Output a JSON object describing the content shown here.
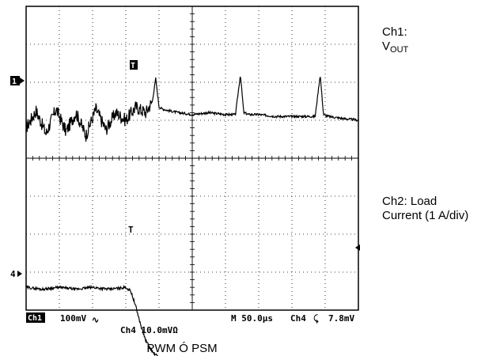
{
  "chart_data": {
    "type": "line",
    "grid": true,
    "x_divisions": 10,
    "y_divisions": 8,
    "series": [
      {
        "name": "Ch1: VOUT",
        "units_per_div": "100mV",
        "x": [
          0,
          0.3,
          0.6,
          0.9,
          1.2,
          1.5,
          1.8,
          2.1,
          2.4,
          2.7,
          3.0,
          3.3,
          3.6,
          3.8,
          3.9,
          4.0,
          4.1,
          4.3,
          4.6,
          5.0,
          5.5,
          6.0,
          6.3,
          6.45,
          6.55,
          6.7,
          7.0,
          7.5,
          8.0,
          8.5,
          8.7,
          8.85,
          8.95,
          9.1,
          9.5,
          10
        ],
        "y": [
          0.8,
          1.25,
          0.65,
          1.3,
          0.7,
          1.2,
          0.6,
          1.3,
          0.75,
          1.2,
          1.0,
          1.35,
          1.2,
          1.5,
          2.1,
          1.35,
          1.3,
          1.25,
          1.2,
          1.15,
          1.2,
          1.15,
          1.15,
          2.2,
          1.2,
          1.15,
          1.15,
          1.1,
          1.1,
          1.1,
          1.1,
          2.2,
          1.15,
          1.1,
          1.05,
          1.0
        ]
      },
      {
        "name": "Ch2: Load Current (1 A/div)",
        "units_per_div": "10.0mV",
        "x": [
          0,
          0.5,
          1.0,
          1.5,
          2.0,
          2.5,
          3.0,
          3.15,
          3.3,
          3.45,
          3.6,
          3.8,
          4.0,
          4.3,
          4.6,
          5.0,
          5.5,
          6.0,
          6.5,
          7.0,
          7.5,
          8.0,
          8.5,
          9.0,
          9.5,
          10
        ],
        "y": [
          -3.4,
          -3.45,
          -3.4,
          -3.45,
          -3.4,
          -3.45,
          -3.4,
          -3.5,
          -3.9,
          -4.4,
          -4.8,
          -5.1,
          -5.25,
          -5.35,
          -5.4,
          -5.42,
          -5.45,
          -5.42,
          -5.45,
          -5.42,
          -5.45,
          -5.42,
          -5.45,
          -5.42,
          -5.45,
          -5.42
        ]
      }
    ]
  },
  "markers": {
    "ch1": "1",
    "ch4": "4",
    "trigger": "T"
  },
  "readout": {
    "ch1_badge": "Ch1",
    "ch1_scale": "100mV",
    "ch1_coupling_symbol": "∿",
    "ch4_scale": "Ch4  10.0mVΩ",
    "timebase": "M 50.0µs",
    "trigger_source": "Ch4",
    "trigger_slope_symbol": "⤹",
    "trigger_level": "7.8mV"
  },
  "labels": {
    "ch1_line1": "Ch1:",
    "ch1_vout_main": "V",
    "ch1_vout_sub": "OUT",
    "ch2_line1": "Ch2:  Load",
    "ch2_line2": "Current (1 A/div)"
  },
  "caption": "PWM Ó PSM"
}
